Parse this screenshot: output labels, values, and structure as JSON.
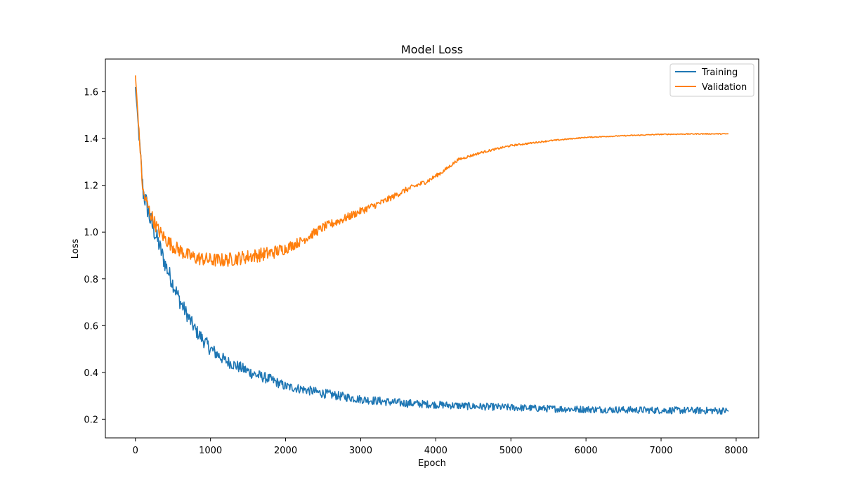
{
  "chart_data": {
    "type": "line",
    "title": "Model Loss",
    "xlabel": "Epoch",
    "ylabel": "Loss",
    "xlim": [
      -400,
      8300
    ],
    "ylim": [
      0.12,
      1.74
    ],
    "xticks": [
      0,
      1000,
      2000,
      3000,
      4000,
      5000,
      6000,
      7000,
      8000
    ],
    "yticks": [
      0.2,
      0.4,
      0.6,
      0.8,
      1.0,
      1.2,
      1.4,
      1.6
    ],
    "ytick_labels": [
      "0.2",
      "0.4",
      "0.6",
      "0.8",
      "1.0",
      "1.2",
      "1.4",
      "1.6"
    ],
    "grid": false,
    "legend_position": "top-right",
    "series": [
      {
        "name": "Training",
        "color": "#1f77b4",
        "x": [
          0,
          100,
          200,
          300,
          400,
          500,
          600,
          700,
          800,
          900,
          1000,
          1200,
          1400,
          1600,
          1800,
          2000,
          2200,
          2500,
          3000,
          3500,
          4000,
          4500,
          5000,
          5500,
          6000,
          6500,
          7000,
          7500,
          7900
        ],
        "values": [
          1.62,
          1.18,
          1.05,
          0.96,
          0.86,
          0.78,
          0.7,
          0.64,
          0.58,
          0.54,
          0.5,
          0.45,
          0.42,
          0.39,
          0.37,
          0.34,
          0.33,
          0.31,
          0.285,
          0.27,
          0.262,
          0.255,
          0.25,
          0.245,
          0.242,
          0.24,
          0.238,
          0.237,
          0.236
        ],
        "noise": [
          0,
          0.05,
          0.045,
          0.04,
          0.04,
          0.035,
          0.035,
          0.03,
          0.03,
          0.03,
          0.03,
          0.025,
          0.025,
          0.025,
          0.022,
          0.02,
          0.02,
          0.02,
          0.018,
          0.018,
          0.016,
          0.016,
          0.015,
          0.015,
          0.015,
          0.015,
          0.015,
          0.015,
          0.015
        ]
      },
      {
        "name": "Validation",
        "color": "#ff7f0e",
        "x": [
          0,
          100,
          200,
          300,
          400,
          500,
          600,
          700,
          800,
          900,
          1000,
          1200,
          1400,
          1600,
          1800,
          2000,
          2200,
          2500,
          2800,
          3000,
          3300,
          3600,
          3900,
          4100,
          4300,
          4600,
          5000,
          5500,
          6000,
          6500,
          7000,
          7500,
          7900
        ],
        "values": [
          1.67,
          1.17,
          1.08,
          1.01,
          0.97,
          0.94,
          0.92,
          0.9,
          0.89,
          0.885,
          0.88,
          0.88,
          0.89,
          0.9,
          0.91,
          0.93,
          0.96,
          1.02,
          1.06,
          1.09,
          1.13,
          1.18,
          1.22,
          1.26,
          1.31,
          1.34,
          1.37,
          1.39,
          1.405,
          1.412,
          1.418,
          1.42,
          1.42
        ],
        "noise": [
          0,
          0.03,
          0.03,
          0.03,
          0.03,
          0.03,
          0.03,
          0.03,
          0.03,
          0.03,
          0.03,
          0.03,
          0.03,
          0.03,
          0.03,
          0.025,
          0.02,
          0.02,
          0.018,
          0.016,
          0.014,
          0.012,
          0.01,
          0.008,
          0.006,
          0.005,
          0.004,
          0.003,
          0.002,
          0.002,
          0.002,
          0.002,
          0.002
        ]
      }
    ]
  }
}
